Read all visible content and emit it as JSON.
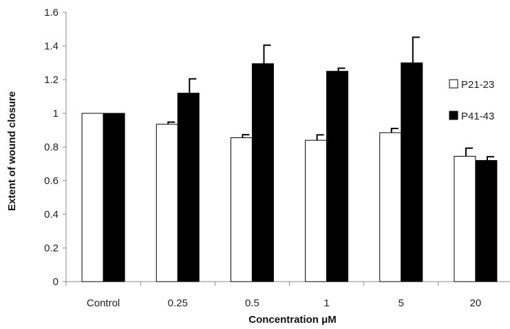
{
  "chart_data": {
    "type": "bar",
    "title": "",
    "xlabel": "Concentration μM",
    "ylabel": "Extent of wound closure",
    "categories": [
      "Control",
      "0.25",
      "0.5",
      "1",
      "5",
      "20"
    ],
    "ylim": [
      0,
      1.6
    ],
    "yticks": [
      "0",
      "0.2",
      "0.4",
      "0.6",
      "0.8",
      "1",
      "1.2",
      "1.4",
      "1.6"
    ],
    "grid": false,
    "legend_position": "right",
    "series": [
      {
        "name": "P21-23",
        "color": "#ffffff",
        "values": [
          1.0,
          0.935,
          0.855,
          0.84,
          0.885,
          0.745
        ],
        "errors": [
          0.0,
          0.013,
          0.018,
          0.032,
          0.025,
          0.048
        ]
      },
      {
        "name": "P41-43",
        "color": "#000000",
        "values": [
          1.0,
          1.12,
          1.295,
          1.25,
          1.3,
          0.72
        ],
        "errors": [
          0.0,
          0.085,
          0.11,
          0.018,
          0.152,
          0.022
        ]
      }
    ]
  }
}
